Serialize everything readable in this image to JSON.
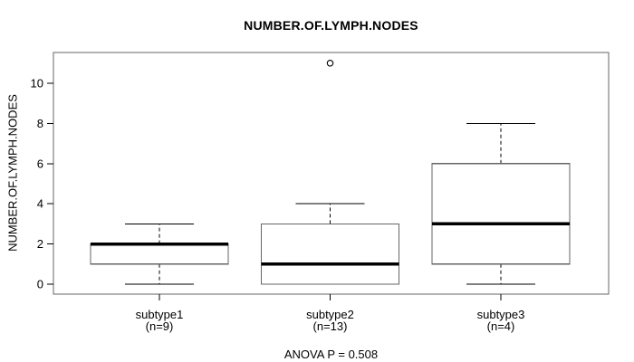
{
  "chart_data": {
    "type": "boxplot",
    "title": "NUMBER.OF.LYMPH.NODES",
    "ylabel": "NUMBER.OF.LYMPH.NODES",
    "xlabel": "",
    "annotation": "ANOVA P = 0.508",
    "categories": [
      "subtype1",
      "subtype2",
      "subtype3"
    ],
    "category_sublabels": [
      "(n=9)",
      "(n=13)",
      "(n=4)"
    ],
    "counts": [
      9,
      13,
      4
    ],
    "yticks": [
      0,
      2,
      4,
      6,
      8,
      10
    ],
    "ylim": [
      -0.5,
      11.5
    ],
    "grid": false,
    "legend": null,
    "series": [
      {
        "name": "subtype1",
        "n": 9,
        "whisker_low": 0,
        "q1": 1,
        "median": 2,
        "q3": 2,
        "whisker_high": 3,
        "outliers": []
      },
      {
        "name": "subtype2",
        "n": 13,
        "whisker_low": 0,
        "q1": 0,
        "median": 1,
        "q3": 3,
        "whisker_high": 4,
        "outliers": [
          11
        ]
      },
      {
        "name": "subtype3",
        "n": 4,
        "whisker_low": 0,
        "q1": 1,
        "median": 3,
        "q3": 6,
        "whisker_high": 8,
        "outliers": []
      }
    ],
    "colors": {
      "ink": "#000000",
      "frame": "#666666",
      "box_fill": "#ffffff",
      "background": "#ffffff"
    }
  }
}
